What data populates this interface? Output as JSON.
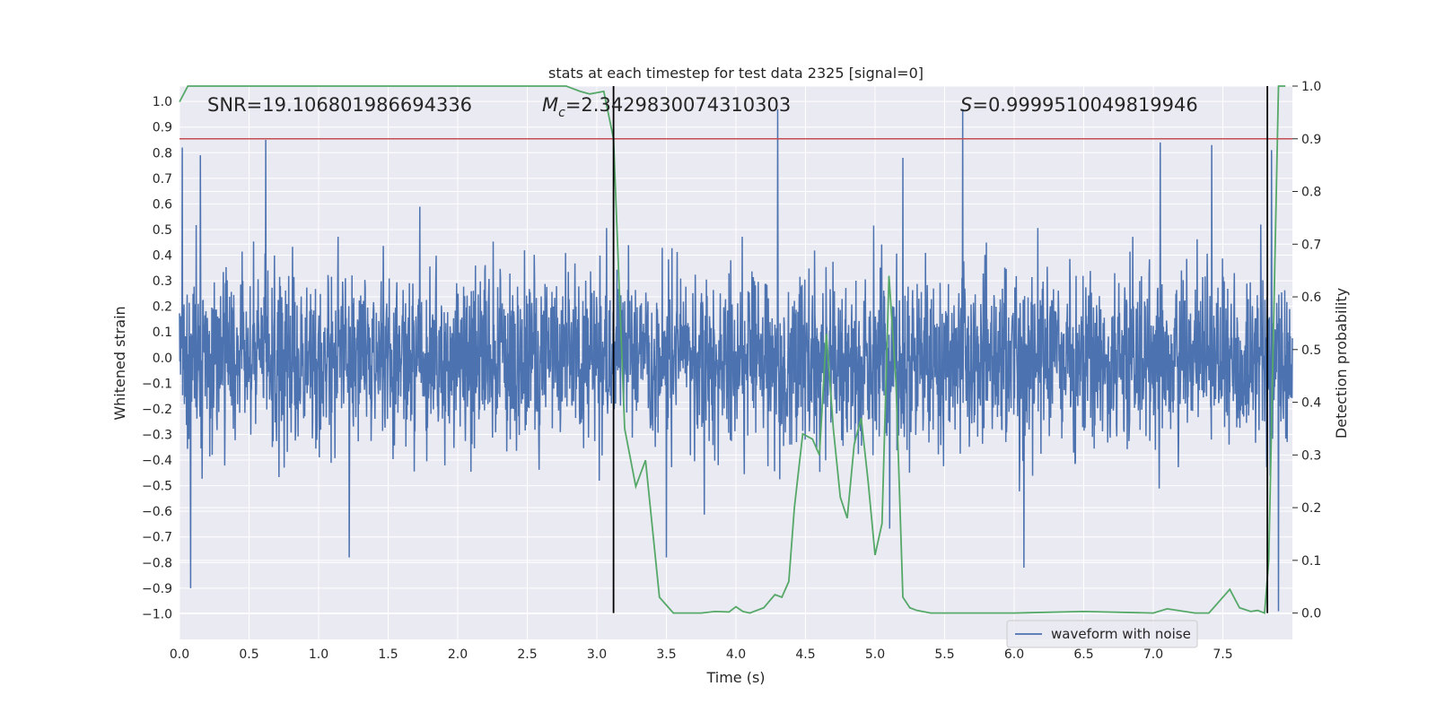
{
  "chart_data": {
    "type": "line",
    "title": "stats at each timestep for test data 2325 [signal=0]",
    "xlabel": "Time (s)",
    "ylabel": "Whitened strain",
    "ylabel_right": "Detection probability",
    "xlim": [
      0.0,
      8.0
    ],
    "ylim": [
      -1.1,
      1.06
    ],
    "ylim_right": [
      -0.05,
      1.0
    ],
    "x_ticks": [
      "0.0",
      "0.5",
      "1.0",
      "1.5",
      "2.0",
      "2.5",
      "3.0",
      "3.5",
      "4.0",
      "4.5",
      "5.0",
      "5.5",
      "6.0",
      "6.5",
      "7.0",
      "7.5"
    ],
    "y_ticks": [
      "1.0",
      "0.9",
      "0.8",
      "0.7",
      "0.6",
      "0.5",
      "0.4",
      "0.3",
      "0.2",
      "0.1",
      "0.0",
      "-0.1",
      "-0.2",
      "-0.3",
      "-0.4",
      "-0.5",
      "-0.6",
      "-0.7",
      "-0.8",
      "-0.9",
      "-1.0"
    ],
    "y_right_ticks": [
      "1.0",
      "0.9",
      "0.8",
      "0.7",
      "0.6",
      "0.5",
      "0.4",
      "0.3",
      "0.2",
      "0.1",
      "0.0"
    ],
    "annotations": {
      "snr": "SNR=19.106801986694336",
      "mc_symbol": "M",
      "mc_sub": "c",
      "mc_value": "=2.3429830074310303",
      "s_symbol": "S",
      "s_value": "=0.9999510049819946"
    },
    "legend": {
      "label": "waveform with noise",
      "position": "lower-right"
    },
    "grid": true,
    "threshold": {
      "axis": "right",
      "value": 0.9,
      "color": "#c44e52"
    },
    "vlines": {
      "x": [
        3.12,
        7.82
      ],
      "ymin": 0.0,
      "ymax": 1.0,
      "color": "#000000"
    },
    "strain_series": {
      "name": "waveform with noise",
      "color": "#4c72b0",
      "noise_std": 0.17,
      "peaks": [
        {
          "x": 0.02,
          "y": 0.82
        },
        {
          "x": 0.15,
          "y": 0.79
        },
        {
          "x": 0.62,
          "y": 0.85
        },
        {
          "x": 4.3,
          "y": 0.97
        },
        {
          "x": 5.63,
          "y": 0.97
        },
        {
          "x": 5.2,
          "y": 0.78
        },
        {
          "x": 7.05,
          "y": 0.84
        },
        {
          "x": 7.42,
          "y": 0.83
        },
        {
          "x": 7.85,
          "y": 0.81
        },
        {
          "x": 0.08,
          "y": -0.9
        },
        {
          "x": 1.22,
          "y": -0.78
        },
        {
          "x": 3.5,
          "y": -0.78
        },
        {
          "x": 6.07,
          "y": -0.82
        },
        {
          "x": 7.9,
          "y": -0.99
        }
      ]
    },
    "probability_series": {
      "name": "detection probability",
      "color": "#55a868",
      "x": [
        0.0,
        0.06,
        0.5,
        1.0,
        1.5,
        2.0,
        2.5,
        2.78,
        2.88,
        2.95,
        3.05,
        3.12,
        3.2,
        3.28,
        3.35,
        3.45,
        3.55,
        3.65,
        3.75,
        3.85,
        3.95,
        4.0,
        4.05,
        4.1,
        4.2,
        4.28,
        4.33,
        4.38,
        4.42,
        4.48,
        4.55,
        4.6,
        4.65,
        4.7,
        4.75,
        4.8,
        4.85,
        4.9,
        4.95,
        5.0,
        5.05,
        5.1,
        5.15,
        5.2,
        5.25,
        5.3,
        5.4,
        5.5,
        6.0,
        6.5,
        7.0,
        7.1,
        7.3,
        7.4,
        7.55,
        7.62,
        7.7,
        7.75,
        7.8,
        7.83,
        7.9,
        7.93,
        7.95
      ],
      "y": [
        0.97,
        1.0,
        1.0,
        1.0,
        1.0,
        1.0,
        1.0,
        1.0,
        0.99,
        0.985,
        0.99,
        0.9,
        0.35,
        0.24,
        0.29,
        0.03,
        0.0,
        0.0,
        0.0,
        0.003,
        0.002,
        0.012,
        0.003,
        0.0,
        0.01,
        0.035,
        0.03,
        0.06,
        0.2,
        0.34,
        0.33,
        0.3,
        0.53,
        0.35,
        0.22,
        0.18,
        0.32,
        0.37,
        0.25,
        0.11,
        0.17,
        0.64,
        0.44,
        0.03,
        0.01,
        0.005,
        0.0,
        0.0,
        0.0,
        0.003,
        0.0,
        0.008,
        0.0,
        0.0,
        0.045,
        0.01,
        0.003,
        0.005,
        0.0,
        0.1,
        1.0,
        1.0,
        1.0
      ]
    }
  }
}
